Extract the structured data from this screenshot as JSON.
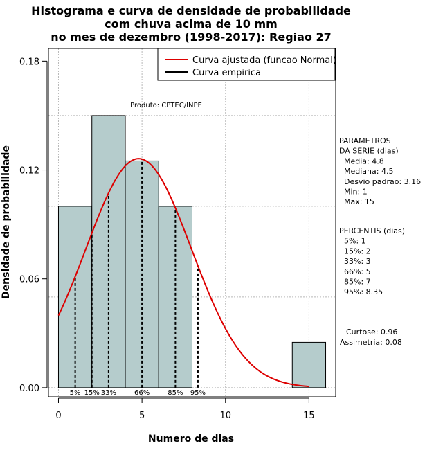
{
  "chart_data": {
    "type": "bar",
    "title_lines": [
      "Histograma e curva de densidade de probabilidade",
      "com chuva acima de 10 mm",
      "no mes de dezembro (1998-2017): Regiao 27"
    ],
    "xlabel": "Numero de dias",
    "ylabel": "Densidade de probabilidade",
    "xlim": [
      -0.6,
      16.6
    ],
    "ylim": [
      -0.005,
      0.187
    ],
    "x_ticks": [
      0,
      5,
      10,
      15
    ],
    "y_ticks": [
      0.0,
      0.06,
      0.12,
      0.18
    ],
    "y_tick_labels": [
      "0.00",
      "0.06",
      "0.12",
      "0.18"
    ],
    "grid": true,
    "bars": [
      {
        "x0": 0,
        "x1": 2,
        "density": 0.1
      },
      {
        "x0": 2,
        "x1": 4,
        "density": 0.15
      },
      {
        "x0": 4,
        "x1": 6,
        "density": 0.125
      },
      {
        "x0": 6,
        "x1": 8,
        "density": 0.1
      },
      {
        "x0": 14,
        "x1": 16,
        "density": 0.025
      }
    ],
    "bar_color": "#b5cccc",
    "normal_curve": {
      "mean": 4.8,
      "sd": 3.16,
      "x_from": 0,
      "x_to": 15,
      "color": "#dd0000"
    },
    "percentiles": [
      {
        "label": "5%",
        "x": 1
      },
      {
        "label": "15%",
        "x": 2
      },
      {
        "label": "33%",
        "x": 3
      },
      {
        "label": "66%",
        "x": 5
      },
      {
        "label": "85%",
        "x": 7
      },
      {
        "label": "95%",
        "x": 8.35
      }
    ],
    "product_label": "Produto: CPTEC/INPE",
    "legend": {
      "placement": "top-right",
      "entries": [
        {
          "label": "Curva ajustada (funcao Normal)",
          "color": "#dd0000"
        },
        {
          "label": "Curva empirica",
          "color": "#000000"
        }
      ]
    }
  },
  "side_panel": {
    "params_lines": [
      "PARAMETROS",
      "DA SERIE (dias)",
      "  Media: 4.8",
      "  Mediana: 4.5",
      "  Desvio padrao: 3.16",
      "  Min: 1",
      "  Max: 15"
    ],
    "percentis_lines": [
      "PERCENTIS (dias)",
      "  5%: 1",
      "  15%: 2",
      "  33%: 3",
      "  66%: 5",
      "  85%: 7",
      "  95%: 8.35"
    ],
    "stats_lines": [
      "Curtose: 0.96",
      "Assimetria: 0.08"
    ]
  }
}
